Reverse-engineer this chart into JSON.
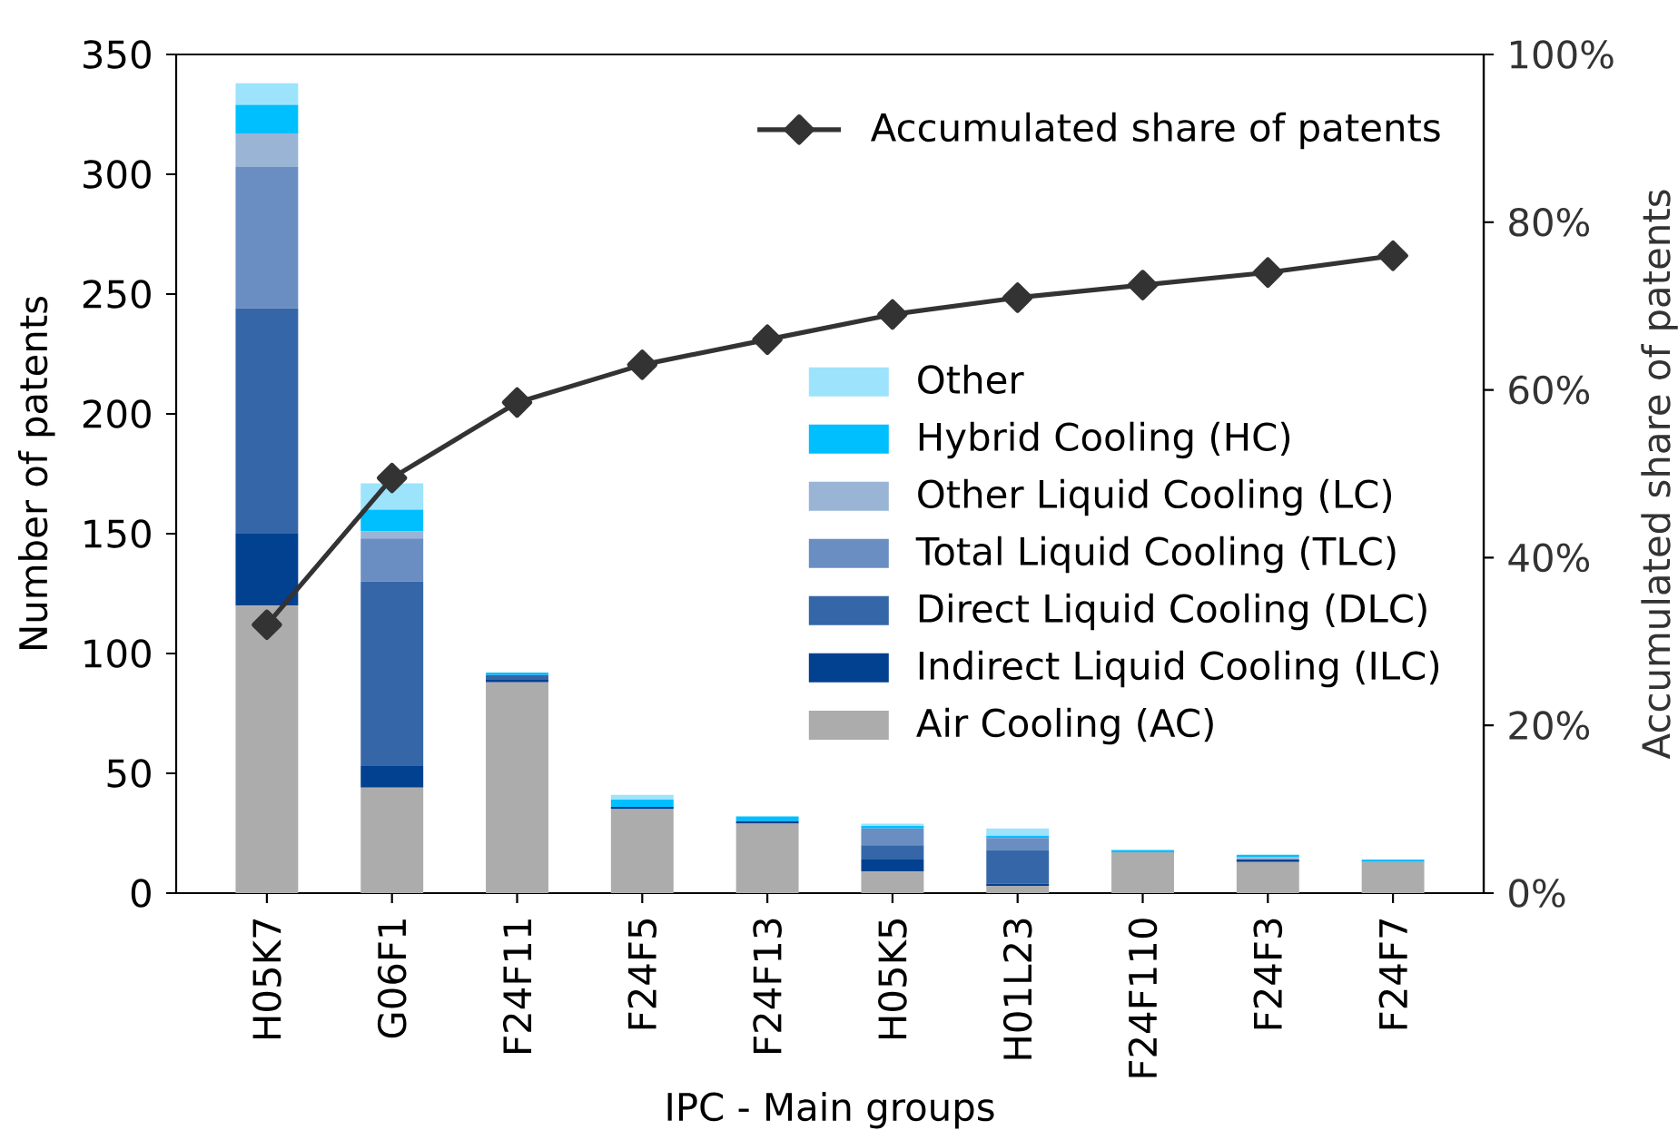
{
  "chart_data": {
    "type": "bar",
    "stacked": true,
    "xlabel": "IPC - Main groups",
    "ylabel": "Number of patents",
    "y2label": "Accumulated share of patents",
    "categories": [
      "H05K7",
      "G06F1",
      "F24F11",
      "F24F5",
      "F24F13",
      "H05K5",
      "H01L23",
      "F24F110",
      "F24F3",
      "F24F7"
    ],
    "series": [
      {
        "name": "Air Cooling (AC)",
        "color": "#acacac",
        "values": [
          120,
          44,
          88,
          35,
          29,
          9,
          3,
          17,
          13,
          13
        ]
      },
      {
        "name": "Indirect Liquid Cooling (ILC)",
        "color": "#024190",
        "values": [
          30,
          9,
          1,
          1,
          1,
          5,
          1,
          0,
          1,
          0
        ]
      },
      {
        "name": "Direct Liquid Cooling (DLC)",
        "color": "#3567a8",
        "values": [
          94,
          77,
          2,
          0,
          0,
          6,
          14,
          0,
          0,
          0
        ]
      },
      {
        "name": "Total Liquid Cooling (TLC)",
        "color": "#6a8ec2",
        "values": [
          59,
          18,
          0,
          0,
          0,
          7,
          5,
          0,
          0,
          0
        ]
      },
      {
        "name": "Other Liquid Cooling (LC)",
        "color": "#9ab4d6",
        "values": [
          14,
          3,
          0,
          0,
          0,
          0,
          0,
          0,
          1,
          0
        ]
      },
      {
        "name": "Hybrid Cooling (HC)",
        "color": "#00bfff",
        "values": [
          12,
          9,
          1,
          3,
          2,
          1,
          1,
          1,
          1,
          1
        ]
      },
      {
        "name": "Other",
        "color": "#9de3fb",
        "values": [
          9,
          11,
          0,
          2,
          0,
          1,
          3,
          0,
          0,
          0
        ]
      },
      {
        "name": "Accumulated share of patents",
        "type": "line",
        "axis": "y2",
        "color": "#333333",
        "marker": "diamond",
        "values": [
          32,
          49.5,
          58.5,
          63,
          66,
          69,
          71,
          72.5,
          74,
          76
        ]
      }
    ],
    "ylim": [
      0,
      350
    ],
    "yticks": [
      0,
      50,
      100,
      150,
      200,
      250,
      300,
      350
    ],
    "y2lim": [
      0,
      100
    ],
    "y2ticks": [
      {
        "value": 0,
        "label": "0%"
      },
      {
        "value": 20,
        "label": "20%"
      },
      {
        "value": 40,
        "label": "40%"
      },
      {
        "value": 60,
        "label": "60%"
      },
      {
        "value": 80,
        "label": "80%"
      },
      {
        "value": 100,
        "label": "100%"
      }
    ],
    "legend": "right"
  }
}
